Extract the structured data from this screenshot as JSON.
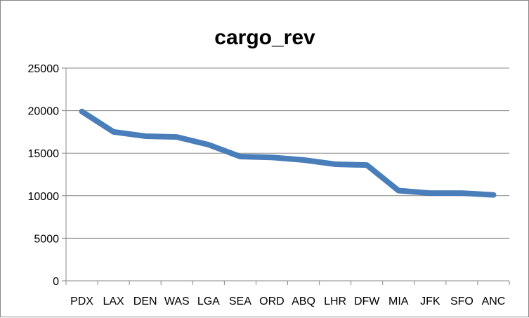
{
  "chart_data": {
    "type": "line",
    "title": "cargo_rev",
    "xlabel": "",
    "ylabel": "",
    "categories": [
      "PDX",
      "LAX",
      "DEN",
      "WAS",
      "LGA",
      "SEA",
      "ORD",
      "ABQ",
      "LHR",
      "DFW",
      "MIA",
      "JFK",
      "SFO",
      "ANC"
    ],
    "series": [
      {
        "values": [
          19900,
          17500,
          17000,
          16900,
          16000,
          14600,
          14500,
          14200,
          13700,
          13600,
          10600,
          10300,
          10300,
          10100
        ],
        "color": "#4a7ebb"
      }
    ],
    "ylim": [
      0,
      25000
    ],
    "yticks": [
      0,
      5000,
      10000,
      15000,
      20000,
      25000
    ],
    "grid": true,
    "legend": "none"
  }
}
